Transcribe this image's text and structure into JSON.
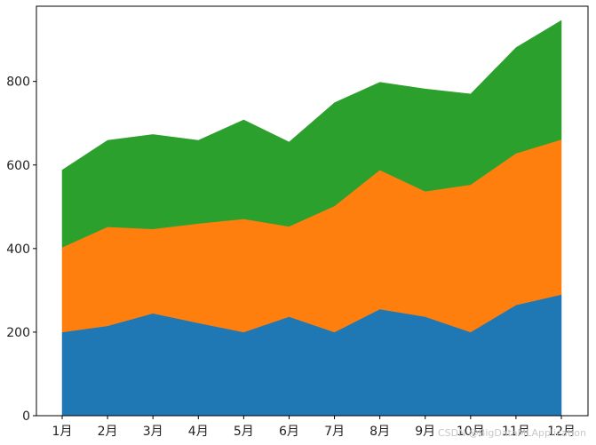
{
  "chart_data": {
    "type": "area",
    "stacked": true,
    "categories": [
      "1月",
      "2月",
      "3月",
      "4月",
      "5月",
      "6月",
      "7月",
      "8月",
      "9月",
      "10月",
      "11月",
      "12月"
    ],
    "series": [
      {
        "color": "#1f77b4",
        "values": [
          200,
          215,
          245,
          222,
          200,
          237,
          200,
          255,
          237,
          200,
          265,
          290
        ]
      },
      {
        "color": "#ff7f0e",
        "values": [
          203,
          237,
          202,
          238,
          271,
          216,
          302,
          333,
          300,
          353,
          363,
          371
        ]
      },
      {
        "color": "#2ca02c",
        "values": [
          185,
          207,
          226,
          199,
          237,
          202,
          247,
          210,
          245,
          217,
          253,
          285
        ]
      }
    ],
    "title": "",
    "xlabel": "",
    "ylabel": "",
    "ylim": [
      0,
      980
    ],
    "yticks": [
      0,
      200,
      400,
      600,
      800
    ],
    "grid": false,
    "legend": "none"
  },
  "watermark": "CSDN @BigDataMLApplication"
}
